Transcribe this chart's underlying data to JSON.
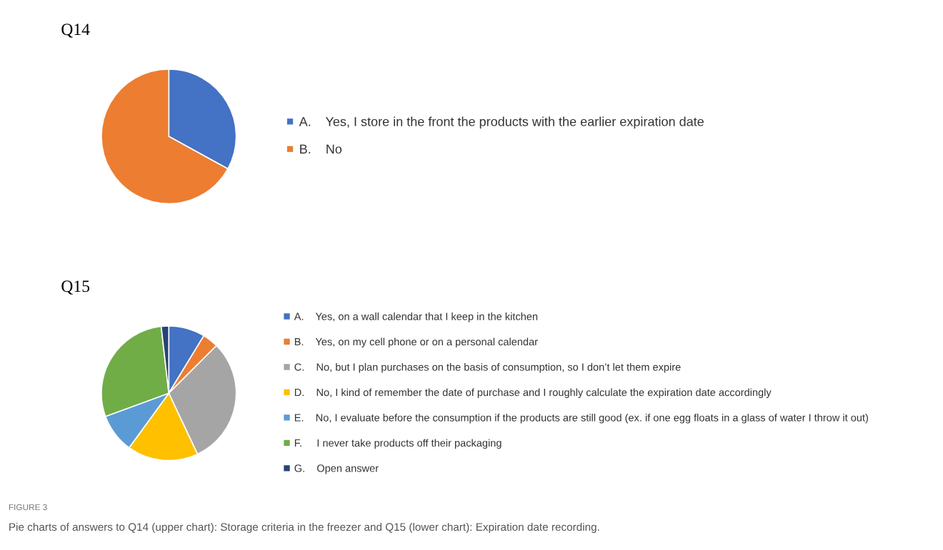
{
  "chart_data": [
    {
      "type": "pie",
      "title": "Q14",
      "legend": "right",
      "categories": [
        "A.    Yes, I store in the front the products with the earlier expiration date",
        "B.    No"
      ],
      "values": [
        33,
        67
      ],
      "colors": [
        "#4472c4",
        "#ed7d31"
      ]
    },
    {
      "type": "pie",
      "title": "Q15",
      "legend": "right",
      "categories": [
        "A.    Yes, on a wall calendar that I keep in the kitchen",
        "B.    Yes, on my cell phone or on a personal calendar",
        "C.    No, but I plan purchases on the basis of consumption, so I don’t let them expire",
        "D.    No, I kind of remember the date of purchase and I roughly calculate the expiration date accordingly",
        "E.    No, I evaluate before the consumption if the products are still good (ex. if one egg floats in a glass of water I throw it out)",
        "F.     I never take products off their packaging",
        "G.    Open answer"
      ],
      "values": [
        8.7,
        3.8,
        30.5,
        17,
        9.4,
        28.8,
        1.8
      ],
      "colors": [
        "#4472c4",
        "#ed7d31",
        "#a5a5a5",
        "#ffc000",
        "#5b9bd5",
        "#70ad47",
        "#264478"
      ],
      "annotations": [
        "FIGURE 3",
        "Pie charts of answers to Q14 (upper chart): Storage criteria in the freezer and Q15 (lower chart): Expiration date recording."
      ]
    }
  ]
}
